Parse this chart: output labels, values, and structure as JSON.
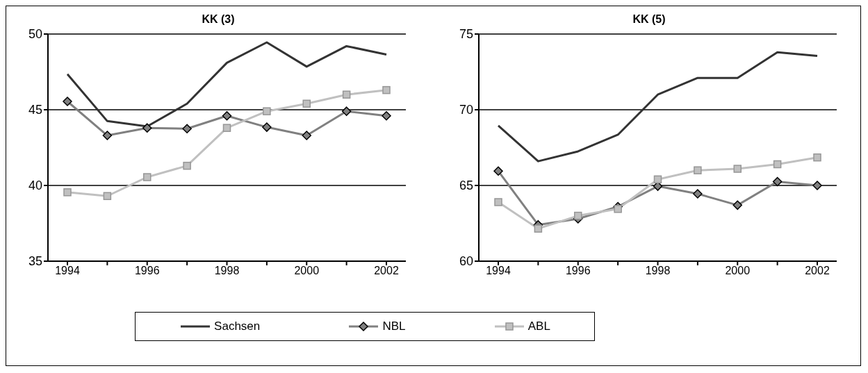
{
  "chart_data": [
    {
      "type": "line",
      "title": "KK (3)",
      "categories": [
        "1994",
        null,
        "1996",
        null,
        "1998",
        null,
        "2000",
        null,
        "2002"
      ],
      "ylim": [
        35,
        50
      ],
      "yticks": [
        35,
        40,
        45,
        50
      ],
      "grid": "y",
      "legend": "bottom",
      "series": [
        {
          "name": "Sachsen",
          "color": "#333333",
          "marker": "none",
          "values": [
            47.35,
            44.25,
            43.9,
            45.4,
            48.1,
            49.45,
            47.85,
            49.2,
            48.65
          ]
        },
        {
          "name": "NBL",
          "color": "#808080",
          "marker": "diamond",
          "values": [
            45.55,
            43.3,
            43.8,
            43.75,
            44.6,
            43.85,
            43.3,
            44.9,
            44.6
          ]
        },
        {
          "name": "ABL",
          "color": "#c0c0c0",
          "marker": "square",
          "values": [
            39.55,
            39.3,
            40.55,
            41.3,
            43.8,
            44.9,
            45.4,
            46.0,
            46.3
          ]
        }
      ]
    },
    {
      "type": "line",
      "title": "KK (5)",
      "categories": [
        "1994",
        null,
        "1996",
        null,
        "1998",
        null,
        "2000",
        null,
        "2002"
      ],
      "ylim": [
        60,
        75
      ],
      "yticks": [
        60,
        65,
        70,
        75
      ],
      "grid": "y",
      "series": [
        {
          "color": "#333333",
          "marker": "none",
          "values": [
            68.95,
            66.6,
            67.25,
            68.35,
            71.0,
            72.1,
            72.1,
            73.8,
            73.55
          ]
        },
        {
          "color": "#808080",
          "marker": "diamond",
          "values": [
            65.95,
            62.4,
            62.8,
            63.6,
            64.95,
            64.45,
            63.7,
            65.25,
            65.0
          ]
        },
        {
          "color": "#c0c0c0",
          "marker": "square",
          "values": [
            63.9,
            62.15,
            63.0,
            63.45,
            65.4,
            66.0,
            66.1,
            66.4,
            66.85
          ]
        }
      ]
    }
  ]
}
